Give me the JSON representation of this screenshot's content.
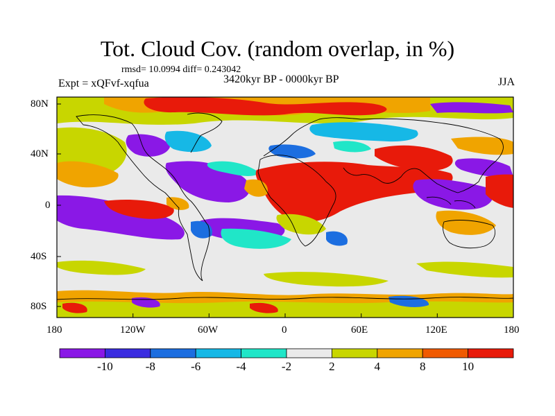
{
  "title": "Tot. Cloud Cov. (random overlap, in %)",
  "stats_text": "rmsd= 10.0994  diff= 0.243042",
  "experiment_label": "Expt = xQFvf-xqfua",
  "period_label": "3420kyr BP - 0000kyr BP",
  "season_label": "JJA",
  "lat_labels": [
    "80N",
    "40N",
    "0",
    "40S",
    "80S"
  ],
  "lon_labels": [
    "180",
    "120W",
    "60W",
    "0",
    "60E",
    "120E",
    "180"
  ],
  "colorbar": {
    "colors": [
      "#8a18e6",
      "#3a2ce0",
      "#1c6ee0",
      "#16b8e6",
      "#20e6c8",
      "#eaeaea",
      "#c8d600",
      "#f0a400",
      "#f05a00",
      "#e81a0a"
    ],
    "labels": [
      "-10",
      "-8",
      "-6",
      "-4",
      "-2",
      "2",
      "4",
      "8",
      "10"
    ]
  },
  "map_background": "#eaeaea",
  "coast_color": "#000000"
}
